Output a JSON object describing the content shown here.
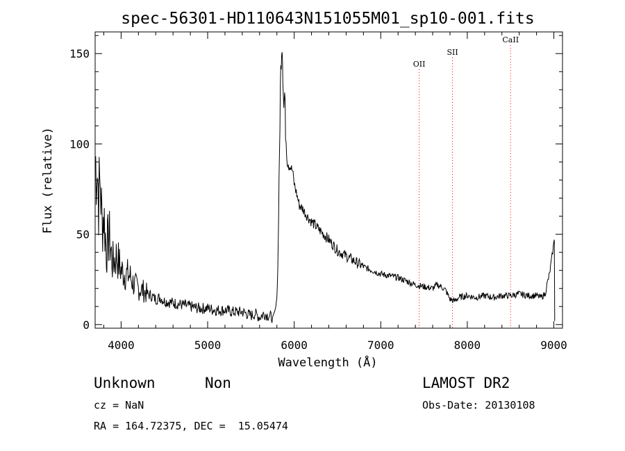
{
  "chart_data": {
    "type": "line",
    "title": "spec-56301-HD110643N151055M01_sp10-001.fits",
    "xlabel": "Wavelength (Å)",
    "ylabel": "Flux (relative)",
    "xlim": [
      3700,
      9100
    ],
    "ylim": [
      -2,
      162
    ],
    "xticks": [
      4000,
      5000,
      6000,
      7000,
      8000,
      9000
    ],
    "yticks": [
      0,
      50,
      100,
      150
    ],
    "grid": false,
    "series": [
      {
        "color": "#000000",
        "x": [
          3700,
          3720,
          3740,
          3760,
          3780,
          3800,
          3830,
          3860,
          3900,
          3950,
          4000,
          4050,
          4100,
          4150,
          4200,
          4250,
          4300,
          4350,
          4400,
          4450,
          4500,
          4600,
          4700,
          4800,
          4900,
          5000,
          5100,
          5200,
          5300,
          5400,
          5500,
          5550,
          5600,
          5650,
          5700,
          5750,
          5780,
          5800,
          5810,
          5820,
          5830,
          5840,
          5850,
          5860,
          5870,
          5880,
          5890,
          5900,
          5920,
          5950,
          5980,
          6000,
          6030,
          6060,
          6100,
          6150,
          6200,
          6300,
          6400,
          6500,
          6600,
          6700,
          6800,
          6900,
          7000,
          7100,
          7200,
          7300,
          7400,
          7500,
          7600,
          7650,
          7700,
          7750,
          7800,
          7850,
          7900,
          8000,
          8100,
          8200,
          8300,
          8400,
          8500,
          8600,
          8700,
          8800,
          8850,
          8900,
          8920,
          8950,
          8980,
          9000,
          9005,
          9010
        ],
        "y": [
          88,
          92,
          70,
          80,
          55,
          62,
          40,
          50,
          34,
          38,
          30,
          28,
          27,
          22,
          20,
          19,
          17,
          16,
          14,
          15,
          13,
          12,
          11,
          10,
          9,
          9,
          8,
          8,
          7,
          7,
          5,
          6,
          4,
          6,
          5,
          4,
          8,
          15,
          30,
          60,
          95,
          130,
          150,
          158,
          140,
          120,
          128,
          108,
          92,
          88,
          85,
          78,
          72,
          66,
          64,
          60,
          57,
          52,
          47,
          41,
          38,
          35,
          32,
          30,
          28,
          27,
          26,
          24,
          22,
          21,
          20,
          22,
          21,
          19,
          14,
          13,
          15,
          16,
          15,
          16,
          15,
          16,
          16,
          17,
          16,
          16,
          15,
          17,
          22,
          28,
          38,
          45,
          48,
          2
        ]
      }
    ],
    "lines": [
      {
        "label": "OII",
        "x": 7444,
        "color": "#ff0000"
      },
      {
        "label": "SII",
        "x": 7829,
        "color": "#ff0000"
      },
      {
        "label": "CaII",
        "x": 8500,
        "color": "#ff0000"
      }
    ]
  },
  "footer": {
    "class_label": "Unknown",
    "subclass_label": "Non",
    "survey": "LAMOST DR2",
    "cz": "cz = NaN",
    "obs_date": "Obs-Date: 20130108",
    "coords": "RA = 164.72375, DEC =  15.05474"
  }
}
